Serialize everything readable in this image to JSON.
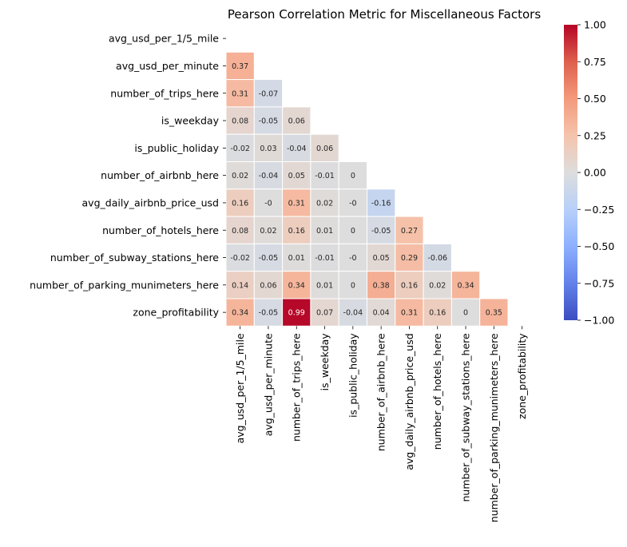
{
  "chart_data": {
    "type": "heatmap",
    "title": "Pearson Correlation Metric for Miscellaneous Factors",
    "xlabel": "",
    "ylabel": "",
    "mask": "upper-triangle-including-diagonal",
    "colormap": "coolwarm",
    "vmin": -1.0,
    "vmax": 1.0,
    "colorbar_ticks": [
      "1.00",
      "0.75",
      "0.50",
      "0.25",
      "0.00",
      "−0.25",
      "−0.50",
      "−0.75",
      "−1.00"
    ],
    "colorbar_tick_values": [
      1.0,
      0.75,
      0.5,
      0.25,
      0.0,
      -0.25,
      -0.5,
      -0.75,
      -1.0
    ],
    "grid": true,
    "legend": "colorbar-right",
    "labels": [
      "avg_usd_per_1/5_mile",
      "avg_usd_per_minute",
      "number_of_trips_here",
      "is_weekday",
      "is_public_holiday",
      "number_of_airbnb_here",
      "avg_daily_airbnb_price_usd",
      "number_of_hotels_here",
      "number_of_subway_stations_here",
      "number_of_parking_munimeters_here",
      "zone_profitability"
    ],
    "values": [
      [],
      [
        0.37
      ],
      [
        0.31,
        -0.07
      ],
      [
        0.08,
        -0.05,
        0.06
      ],
      [
        -0.02,
        0.03,
        -0.04,
        0.06
      ],
      [
        0.02,
        -0.04,
        0.05,
        -0.01,
        0
      ],
      [
        0.16,
        -0.0,
        0.31,
        0.02,
        -0.0,
        -0.16
      ],
      [
        0.08,
        0.02,
        0.16,
        0.01,
        0,
        -0.05,
        0.27
      ],
      [
        -0.02,
        -0.05,
        0.01,
        -0.01,
        -0.0,
        0.05,
        0.29,
        -0.06
      ],
      [
        0.14,
        0.06,
        0.34,
        0.01,
        0,
        0.38,
        0.16,
        0.02,
        0.34
      ],
      [
        0.34,
        -0.05,
        0.99,
        0.07,
        -0.04,
        0.04,
        0.31,
        0.16,
        0,
        0.35
      ]
    ],
    "value_labels": [
      [],
      [
        "0.37"
      ],
      [
        "0.31",
        "-0.07"
      ],
      [
        "0.08",
        "-0.05",
        "0.06"
      ],
      [
        "-0.02",
        "0.03",
        "-0.04",
        "0.06"
      ],
      [
        "0.02",
        "-0.04",
        "0.05",
        "-0.01",
        "0"
      ],
      [
        "0.16",
        "-0",
        "0.31",
        "0.02",
        "-0",
        "-0.16"
      ],
      [
        "0.08",
        "0.02",
        "0.16",
        "0.01",
        "0",
        "-0.05",
        "0.27"
      ],
      [
        "-0.02",
        "-0.05",
        "0.01",
        "-0.01",
        "-0",
        "0.05",
        "0.29",
        "-0.06"
      ],
      [
        "0.14",
        "0.06",
        "0.34",
        "0.01",
        "0",
        "0.38",
        "0.16",
        "0.02",
        "0.34"
      ],
      [
        "0.34",
        "-0.05",
        "0.99",
        "0.07",
        "-0.04",
        "0.04",
        "0.31",
        "0.16",
        "0",
        "0.35"
      ]
    ]
  }
}
